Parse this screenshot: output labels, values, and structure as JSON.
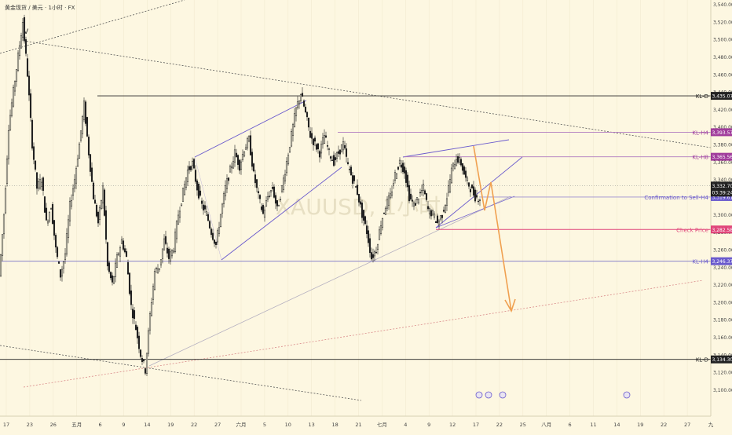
{
  "header": {
    "symbol_line": "黄金现货 / 美元 · 1小时 · FX"
  },
  "watermark": "XAUUSD, 1小时",
  "colors": {
    "background": "#fdf7e1",
    "candle": "#1f1f1f",
    "purple": "#6a5acd",
    "magenta": "#a03c9b",
    "pink": "#e0457a",
    "orange": "#f0a050",
    "dark_label": "#222222"
  },
  "chart_data": {
    "type": "candlestick",
    "y_axis": {
      "range": [
        3082,
        3545
      ],
      "ticks": [
        "3,540.00",
        "3,520.00",
        "3,500.00",
        "3,480.00",
        "3,460.00",
        "3,440.00",
        "3,420.00",
        "3,400.00",
        "3,380.00",
        "3,360.00",
        "3,340.00",
        "3,320.00",
        "3,300.00",
        "3,280.00",
        "3,260.00",
        "3,240.00",
        "3,220.00",
        "3,200.00",
        "3,180.00",
        "3,160.00",
        "3,140.00",
        "3,120.00",
        "3,100.00"
      ]
    },
    "x_axis": {
      "ticks": [
        "17",
        "23",
        "26",
        "五月",
        "6",
        "9",
        "14",
        "19",
        "22",
        "27",
        "六月",
        "5",
        "10",
        "13",
        "18",
        "21",
        "七月",
        "4",
        "9",
        "12",
        "17",
        "22",
        "25",
        "八月",
        "6",
        "11",
        "14",
        "19",
        "22",
        "27",
        "九"
      ]
    },
    "price_path": [
      [
        0,
        3230
      ],
      [
        3,
        3300
      ],
      [
        6,
        3400
      ],
      [
        9,
        3440
      ],
      [
        12,
        3480
      ],
      [
        15,
        3520
      ],
      [
        18,
        3460
      ],
      [
        21,
        3380
      ],
      [
        24,
        3330
      ],
      [
        27,
        3340
      ],
      [
        30,
        3290
      ],
      [
        33,
        3310
      ],
      [
        36,
        3260
      ],
      [
        39,
        3230
      ],
      [
        42,
        3255
      ],
      [
        45,
        3310
      ],
      [
        48,
        3340
      ],
      [
        51,
        3380
      ],
      [
        54,
        3425
      ],
      [
        57,
        3370
      ],
      [
        60,
        3320
      ],
      [
        63,
        3290
      ],
      [
        66,
        3330
      ],
      [
        69,
        3240
      ],
      [
        72,
        3220
      ],
      [
        75,
        3250
      ],
      [
        78,
        3270
      ],
      [
        81,
        3250
      ],
      [
        84,
        3195
      ],
      [
        87,
        3170
      ],
      [
        90,
        3140
      ],
      [
        93,
        3122
      ],
      [
        96,
        3185
      ],
      [
        99,
        3235
      ],
      [
        102,
        3240
      ],
      [
        105,
        3270
      ],
      [
        108,
        3250
      ],
      [
        111,
        3262
      ],
      [
        114,
        3300
      ],
      [
        117,
        3325
      ],
      [
        120,
        3350
      ],
      [
        123,
        3358
      ],
      [
        126,
        3330
      ],
      [
        129,
        3310
      ],
      [
        132,
        3300
      ],
      [
        135,
        3280
      ],
      [
        138,
        3265
      ],
      [
        141,
        3300
      ],
      [
        144,
        3330
      ],
      [
        147,
        3350
      ],
      [
        150,
        3370
      ],
      [
        153,
        3355
      ],
      [
        156,
        3375
      ],
      [
        159,
        3385
      ],
      [
        162,
        3345
      ],
      [
        165,
        3320
      ],
      [
        168,
        3300
      ],
      [
        171,
        3320
      ],
      [
        174,
        3330
      ],
      [
        177,
        3305
      ],
      [
        180,
        3330
      ],
      [
        183,
        3360
      ],
      [
        186,
        3390
      ],
      [
        189,
        3420
      ],
      [
        192,
        3438
      ],
      [
        195,
        3415
      ],
      [
        198,
        3390
      ],
      [
        201,
        3380
      ],
      [
        204,
        3370
      ],
      [
        207,
        3390
      ],
      [
        210,
        3370
      ],
      [
        213,
        3360
      ],
      [
        216,
        3370
      ],
      [
        219,
        3380
      ],
      [
        222,
        3355
      ],
      [
        225,
        3340
      ],
      [
        228,
        3325
      ],
      [
        231,
        3300
      ],
      [
        234,
        3280
      ],
      [
        237,
        3250
      ],
      [
        240,
        3260
      ],
      [
        243,
        3290
      ],
      [
        246,
        3310
      ],
      [
        249,
        3320
      ],
      [
        252,
        3345
      ],
      [
        255,
        3360
      ],
      [
        258,
        3350
      ],
      [
        261,
        3320
      ],
      [
        264,
        3310
      ],
      [
        267,
        3320
      ],
      [
        270,
        3330
      ],
      [
        273,
        3305
      ],
      [
        276,
        3300
      ],
      [
        279,
        3290
      ],
      [
        282,
        3300
      ],
      [
        285,
        3320
      ],
      [
        288,
        3350
      ],
      [
        291,
        3365
      ],
      [
        294,
        3358
      ],
      [
        297,
        3340
      ],
      [
        300,
        3330
      ],
      [
        303,
        3320
      ],
      [
        306,
        3318
      ]
    ],
    "levels": [
      {
        "name": "KL-D",
        "label": "KL-D",
        "value": 3435.07,
        "value_text": "3,435.07"
      },
      {
        "name": "KL-H4",
        "label": "KL-H4",
        "value": 3393.57,
        "value_text": "3,393.57"
      },
      {
        "name": "KL-H8",
        "label": "KL-H8",
        "value": 3365.56,
        "value_text": "3,365.56"
      },
      {
        "name": "Confirmation to Sell-H4",
        "label": "Confirmation to Sell-H4",
        "value": 3319.61,
        "value_text": "3,319.61"
      },
      {
        "name": "Check Price",
        "label": "Check Price",
        "value": 3282.58,
        "value_text": "3,282.58"
      },
      {
        "name": "KL-H4 low",
        "label": "KL-H4",
        "value": 3246.37,
        "value_text": "3,246.37"
      },
      {
        "name": "KL-D low",
        "label": "KL-D",
        "value": 3134.3,
        "value_text": "3,134.30"
      }
    ],
    "current_price": {
      "value": 3332.7,
      "value_text": "3,332.70",
      "countdown": "03:39:24"
    },
    "annotations": {
      "peak_marker": "V"
    }
  }
}
